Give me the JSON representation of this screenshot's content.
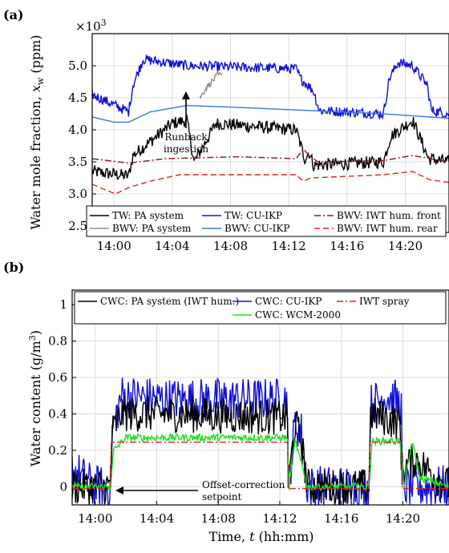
{
  "chart_data": [
    {
      "panel_label": "(a)",
      "type": "line",
      "exponent_label": "×10",
      "exponent_power": "3",
      "ylabel": "Water mole fraction, x_w (ppm)",
      "ylabel_main": "Water mole fraction, ",
      "ylabel_var": "x",
      "ylabel_sub": "w",
      "ylabel_unit": " (ppm)",
      "xlim": [
        "13:58:30",
        "14:23:00"
      ],
      "ylim": [
        2.4,
        5.5
      ],
      "x_ticks": [
        "14:00",
        "14:04",
        "14:08",
        "14:12",
        "14:16",
        "14:20"
      ],
      "y_ticks": [
        "2.5",
        "3.0",
        "3.5",
        "4.0",
        "4.5",
        "5.0"
      ],
      "grid": true,
      "legend_placement": "bottom",
      "legend": [
        "TW: PA system",
        "TW: CU-IKP",
        "BWV: IWT hum. front",
        "BWV: PA system",
        "BWV: CU-IKP",
        "BWV: IWT hum. rear"
      ],
      "annotation": "Runback ingestion",
      "annotation_lines": [
        "Runback",
        "ingestion"
      ],
      "series": [
        {
          "name": "TW: PA system",
          "color": "#000000",
          "style": "solid",
          "points": [
            [
              0,
              3.35
            ],
            [
              2.5,
              3.28
            ],
            [
              2.8,
              3.6
            ],
            [
              5.5,
              4.1
            ],
            [
              6.5,
              4.15
            ],
            [
              7,
              3.5
            ],
            [
              8.5,
              4.1
            ],
            [
              14,
              4.0
            ],
            [
              14.6,
              3.55
            ],
            [
              14.9,
              3.65
            ],
            [
              15.2,
              3.45
            ],
            [
              20,
              3.5
            ],
            [
              20.5,
              3.9
            ],
            [
              22,
              4.15
            ],
            [
              23.1,
              3.55
            ],
            [
              24.5,
              3.5
            ]
          ],
          "noise": 0.1
        },
        {
          "name": "TW: CU-IKP",
          "color": "#1010d8",
          "style": "solid",
          "points": [
            [
              0,
              4.55
            ],
            [
              2.5,
              4.28
            ],
            [
              2.8,
              4.7
            ],
            [
              3.5,
              5.1
            ],
            [
              6.5,
              5.0
            ],
            [
              14,
              4.95
            ],
            [
              14.3,
              4.8
            ],
            [
              14.8,
              4.7
            ],
            [
              15.2,
              4.6
            ],
            [
              15.6,
              4.3
            ],
            [
              20,
              4.25
            ],
            [
              20.4,
              4.8
            ],
            [
              21,
              5.05
            ],
            [
              22,
              5.0
            ],
            [
              23,
              4.7
            ],
            [
              23.3,
              4.3
            ],
            [
              24.5,
              4.25
            ]
          ],
          "noise": 0.08
        },
        {
          "name": "BWV: IWT hum. front",
          "color": "#8b1a1a",
          "style": "dashdot",
          "points": [
            [
              0,
              3.55
            ],
            [
              2.5,
              3.48
            ],
            [
              5,
              3.55
            ],
            [
              10,
              3.58
            ],
            [
              14,
              3.55
            ],
            [
              14.5,
              3.7
            ],
            [
              14.9,
              3.6
            ],
            [
              15.5,
              3.5
            ],
            [
              20,
              3.52
            ],
            [
              22,
              3.6
            ],
            [
              23.2,
              3.55
            ],
            [
              24.5,
              3.5
            ]
          ]
        },
        {
          "name": "BWV: PA system",
          "color": "#909090",
          "style": "solid",
          "points": [
            [
              7.4,
              4.5
            ],
            [
              7.8,
              4.65
            ],
            [
              8.2,
              4.75
            ],
            [
              8.6,
              4.85
            ],
            [
              8.9,
              4.85
            ]
          ],
          "noise": 0.05
        },
        {
          "name": "BWV: CU-IKP",
          "color": "#3a78d8",
          "style": "solid",
          "points": [
            [
              0,
              4.2
            ],
            [
              1.5,
              4.12
            ],
            [
              2.5,
              4.12
            ],
            [
              4,
              4.28
            ],
            [
              6.5,
              4.38
            ],
            [
              10,
              4.35
            ],
            [
              15,
              4.3
            ],
            [
              20,
              4.25
            ],
            [
              24.5,
              4.18
            ]
          ]
        },
        {
          "name": "BWV: IWT hum. rear",
          "color": "#e02020",
          "style": "dashed",
          "points": [
            [
              0,
              3.15
            ],
            [
              1.6,
              3.0
            ],
            [
              2.5,
              3.1
            ],
            [
              4,
              3.2
            ],
            [
              6,
              3.3
            ],
            [
              14,
              3.3
            ],
            [
              14.5,
              3.2
            ],
            [
              15,
              3.25
            ],
            [
              20,
              3.3
            ],
            [
              22,
              3.35
            ],
            [
              23.2,
              3.22
            ],
            [
              24.5,
              3.18
            ]
          ]
        }
      ]
    },
    {
      "panel_label": "(b)",
      "type": "line",
      "xlabel": "Time, t (hh:mm)",
      "xlabel_main": "Time, ",
      "xlabel_var": "t",
      "xlabel_unit": " (hh:mm)",
      "ylabel": "Water content (g/m³)",
      "ylabel_main": "Water content (g/m",
      "ylabel_sup": "3",
      "ylabel_close": ")",
      "xlim": [
        "13:58:30",
        "14:23:00"
      ],
      "ylim": [
        -0.1,
        1.08
      ],
      "x_ticks": [
        "14:00",
        "14:04",
        "14:08",
        "14:12",
        "14:16",
        "14:20"
      ],
      "y_ticks": [
        "0",
        "0.2",
        "0.4",
        "0.6",
        "0.8",
        "1"
      ],
      "grid": true,
      "legend_placement": "top",
      "legend": [
        "CWC: PA system (IWT hum.)",
        "CWC: CU-IKP",
        "IWT spray",
        "CWC: WCM-2000"
      ],
      "annotation": "Offset-correction setpoint",
      "annotation_lines": [
        "Offset-correction",
        "setpoint"
      ],
      "series": [
        {
          "name": "CWC: CU-IKP",
          "color": "#1010d8",
          "style": "solid",
          "points": [
            [
              0,
              0.1
            ],
            [
              1.4,
              0.0
            ],
            [
              2.5,
              0.0
            ],
            [
              2.6,
              0.3
            ],
            [
              3.2,
              0.5
            ],
            [
              6,
              0.48
            ],
            [
              10,
              0.48
            ],
            [
              14,
              0.48
            ],
            [
              14.05,
              0.0
            ],
            [
              14.5,
              0.35
            ],
            [
              14.9,
              0.3
            ],
            [
              15.3,
              0.0
            ],
            [
              19.3,
              0.0
            ],
            [
              19.4,
              0.45
            ],
            [
              20.5,
              0.5
            ],
            [
              21.4,
              0.45
            ],
            [
              21.45,
              0.0
            ],
            [
              24.5,
              0.0
            ]
          ],
          "noise": 0.12
        },
        {
          "name": "CWC: PA system (IWT hum.)",
          "color": "#000000",
          "style": "solid",
          "points": [
            [
              0,
              0.0
            ],
            [
              2.5,
              0.0
            ],
            [
              2.6,
              0.3
            ],
            [
              3.2,
              0.4
            ],
            [
              6,
              0.4
            ],
            [
              14,
              0.38
            ],
            [
              14.05,
              0.0
            ],
            [
              14.5,
              0.35
            ],
            [
              14.9,
              0.25
            ],
            [
              15.3,
              0.0
            ],
            [
              19.3,
              0.0
            ],
            [
              19.4,
              0.4
            ],
            [
              21.3,
              0.35
            ],
            [
              21.45,
              0.1
            ],
            [
              22.3,
              0.15
            ],
            [
              24.5,
              0.0
            ]
          ],
          "noise": 0.1
        },
        {
          "name": "CWC: WCM-2000",
          "color": "#22dd22",
          "style": "solid",
          "points": [
            [
              0,
              0.0
            ],
            [
              2.5,
              0.0
            ],
            [
              2.7,
              0.2
            ],
            [
              3.5,
              0.27
            ],
            [
              14,
              0.27
            ],
            [
              14.1,
              0.0
            ],
            [
              14.5,
              0.25
            ],
            [
              15.3,
              0.0
            ],
            [
              19.3,
              0.0
            ],
            [
              19.5,
              0.25
            ],
            [
              21.3,
              0.25
            ],
            [
              21.6,
              0.0
            ],
            [
              22.1,
              0.25
            ],
            [
              22.6,
              0.05
            ],
            [
              24.5,
              0.0
            ]
          ],
          "noise": 0.02
        },
        {
          "name": "IWT spray",
          "color": "#e02020",
          "style": "dashdot",
          "points": [
            [
              0,
              -0.01
            ],
            [
              2.45,
              -0.01
            ],
            [
              2.55,
              0.245
            ],
            [
              14.0,
              0.245
            ],
            [
              14.05,
              -0.01
            ],
            [
              19.3,
              -0.01
            ],
            [
              19.35,
              0.245
            ],
            [
              21.4,
              0.245
            ],
            [
              21.45,
              -0.01
            ],
            [
              24.5,
              -0.01
            ]
          ]
        }
      ]
    }
  ]
}
